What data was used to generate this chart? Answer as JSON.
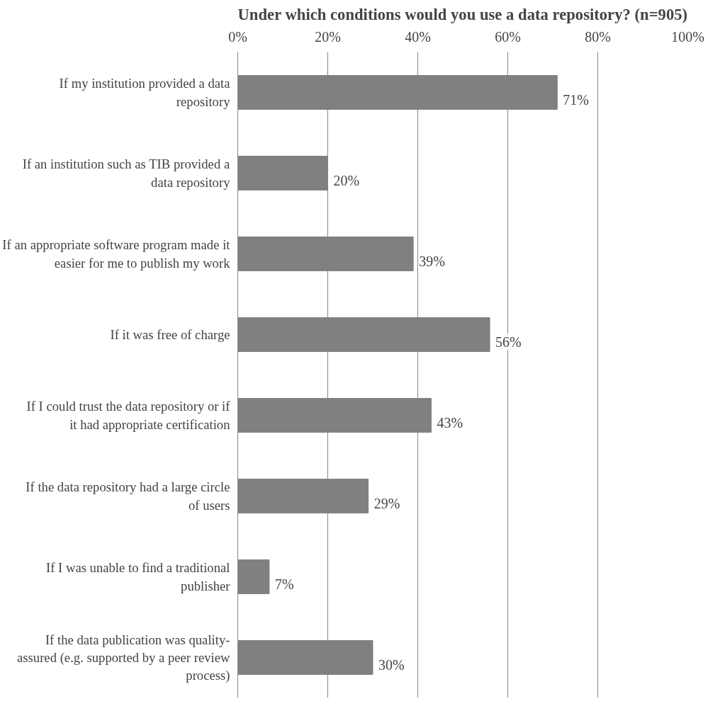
{
  "chart_data": {
    "type": "bar",
    "orientation": "horizontal",
    "title": "Under which conditions would you use a data repository? (n=905)",
    "categories": [
      "If my institution provided a data repository",
      "If an institution such as TIB provided a data repository",
      "If an appropriate software program made it easier for me to publish my work",
      "If it was free of charge",
      "If I could trust the data repository or if it had appropriate certification",
      "If the data repository had a large circle of users",
      "If I was unable to find a traditional publisher",
      "If the data publication was quality-assured (e.g. supported by a peer review process)"
    ],
    "values": [
      71,
      20,
      39,
      56,
      43,
      29,
      7,
      30
    ],
    "value_labels": [
      "71%",
      "20%",
      "39%",
      "56%",
      "43%",
      "29%",
      "7%",
      "30%"
    ],
    "color": "#808080",
    "xlim": [
      0,
      100
    ],
    "xticks": [
      {
        "value": 0,
        "label": "0%"
      },
      {
        "value": 20,
        "label": "20%"
      },
      {
        "value": 40,
        "label": "40%"
      },
      {
        "value": 60,
        "label": "60%"
      },
      {
        "value": 80,
        "label": "80%"
      },
      {
        "value": 100,
        "label": "100%"
      }
    ],
    "grid": "x"
  }
}
